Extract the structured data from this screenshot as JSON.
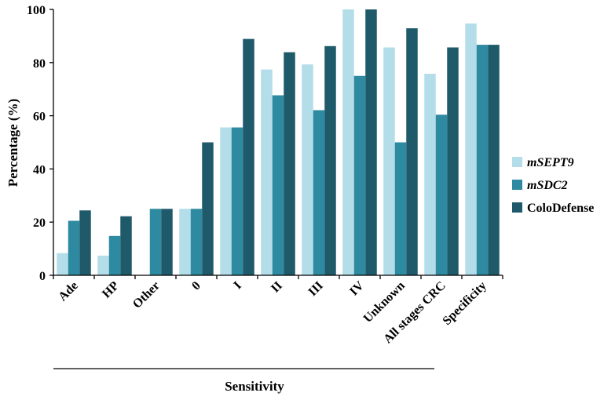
{
  "chart_data": {
    "type": "bar",
    "title": "",
    "ylabel": "Percentage (%)",
    "xlabel": "Sensitivity",
    "ylim": [
      0,
      100
    ],
    "yticks": [
      0,
      20,
      40,
      60,
      80,
      100
    ],
    "categories": [
      "Ade",
      "HP",
      "Other",
      "0",
      "I",
      "II",
      "III",
      "IV",
      "Unknown",
      "All stages CRC",
      "Specificity"
    ],
    "series": [
      {
        "name": "mSEPT9",
        "color": "#b3dde8",
        "values": [
          8.3,
          7.4,
          0,
          25,
          55.6,
          77.4,
          79.3,
          100,
          85.7,
          75.8,
          94.7
        ]
      },
      {
        "name": "mSDC2",
        "color": "#2e8aa0",
        "values": [
          20.5,
          14.8,
          25,
          25,
          55.6,
          67.7,
          62.1,
          75,
          50,
          60.4,
          86.7
        ]
      },
      {
        "name": "ColoDefense",
        "color": "#1f5a6b",
        "values": [
          24.4,
          22.2,
          25,
          50,
          88.9,
          83.9,
          86.2,
          100,
          92.9,
          85.7,
          86.7
        ]
      }
    ],
    "legend_position": "right",
    "grid": false,
    "sensitivity_bracket": true
  }
}
